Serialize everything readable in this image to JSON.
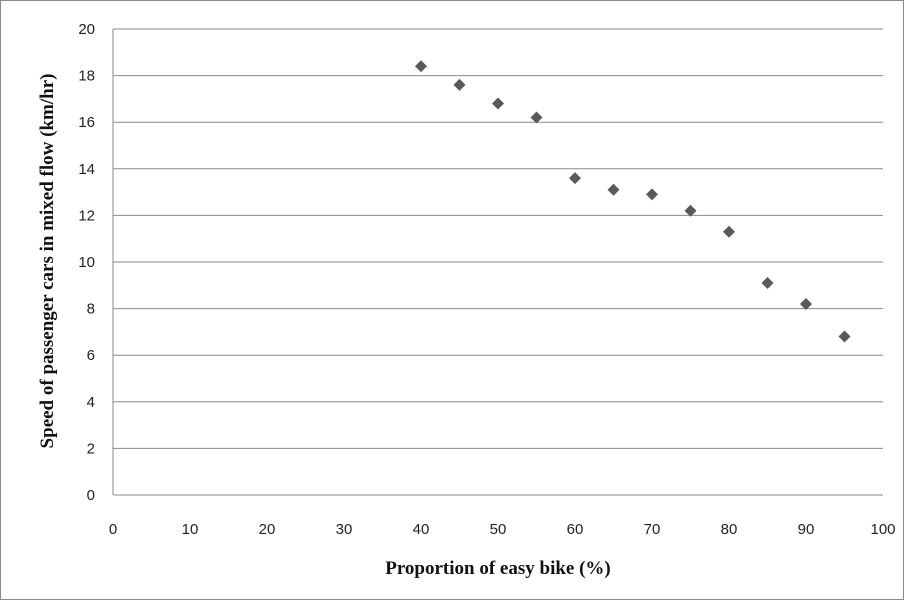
{
  "chart_data": {
    "type": "scatter",
    "title": "",
    "xlabel": "Proportion of easy bike (%)",
    "ylabel": "Speed of passenger cars in mixed flow (km/hr)",
    "xlim": [
      0,
      100
    ],
    "ylim": [
      0,
      20
    ],
    "x_ticks": [
      "0",
      "10",
      "20",
      "30",
      "40",
      "50",
      "60",
      "70",
      "80",
      "90",
      "100"
    ],
    "y_ticks": [
      "0",
      "2",
      "4",
      "6",
      "8",
      "10",
      "12",
      "14",
      "16",
      "18",
      "20"
    ],
    "grid": "horizontal",
    "legend": "none",
    "marker": "diamond",
    "marker_color": "#595959",
    "series": [
      {
        "x": [
          40,
          45,
          50,
          55,
          60,
          65,
          70,
          75,
          80,
          85,
          90,
          95
        ],
        "y": [
          18.4,
          17.6,
          16.8,
          16.2,
          13.6,
          13.1,
          12.9,
          12.2,
          11.3,
          9.1,
          8.2,
          6.8
        ]
      }
    ]
  }
}
